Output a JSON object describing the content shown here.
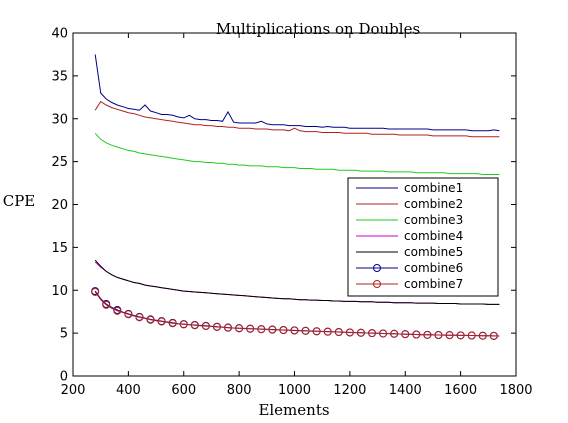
{
  "chart_data": {
    "type": "line",
    "title": "Multiplications on Doubles",
    "xlabel": "Elements",
    "ylabel": "CPE",
    "xlim": [
      200,
      1800
    ],
    "ylim": [
      0,
      40
    ],
    "xticks": [
      200,
      400,
      600,
      800,
      1000,
      1200,
      1400,
      1600,
      1800
    ],
    "yticks": [
      0,
      5,
      10,
      15,
      20,
      25,
      30,
      35,
      40
    ],
    "grid": false,
    "legend_position": "right",
    "x": [
      280,
      300,
      320,
      340,
      360,
      380,
      400,
      420,
      440,
      460,
      480,
      500,
      520,
      540,
      560,
      580,
      600,
      620,
      640,
      660,
      680,
      700,
      720,
      740,
      760,
      780,
      800,
      820,
      840,
      860,
      880,
      900,
      920,
      940,
      960,
      980,
      1000,
      1020,
      1040,
      1060,
      1080,
      1100,
      1120,
      1140,
      1160,
      1180,
      1200,
      1220,
      1240,
      1260,
      1280,
      1300,
      1320,
      1340,
      1360,
      1380,
      1400,
      1420,
      1440,
      1460,
      1480,
      1500,
      1520,
      1540,
      1560,
      1580,
      1600,
      1620,
      1640,
      1660,
      1680,
      1700,
      1720,
      1740
    ],
    "series": [
      {
        "name": "combine1",
        "color": "#00008b",
        "marker": "none",
        "values": [
          37.5,
          33.0,
          32.3,
          31.9,
          31.6,
          31.4,
          31.2,
          31.1,
          31.0,
          31.6,
          30.9,
          30.7,
          30.5,
          30.5,
          30.4,
          30.2,
          30.1,
          30.4,
          30.0,
          29.9,
          29.9,
          29.8,
          29.8,
          29.7,
          30.8,
          29.6,
          29.5,
          29.5,
          29.5,
          29.5,
          29.7,
          29.4,
          29.3,
          29.3,
          29.3,
          29.2,
          29.2,
          29.2,
          29.1,
          29.1,
          29.1,
          29.0,
          29.1,
          29.0,
          29.0,
          29.0,
          28.9,
          28.9,
          28.9,
          28.9,
          28.9,
          28.9,
          28.9,
          28.8,
          28.8,
          28.8,
          28.8,
          28.8,
          28.8,
          28.8,
          28.8,
          28.7,
          28.7,
          28.7,
          28.7,
          28.7,
          28.7,
          28.7,
          28.6,
          28.6,
          28.6,
          28.6,
          28.7,
          28.6
        ]
      },
      {
        "name": "combine2",
        "color": "#b22222",
        "marker": "none",
        "values": [
          31.0,
          32.0,
          31.6,
          31.3,
          31.1,
          30.9,
          30.7,
          30.6,
          30.4,
          30.2,
          30.1,
          30.0,
          29.9,
          29.8,
          29.7,
          29.6,
          29.5,
          29.4,
          29.3,
          29.3,
          29.2,
          29.2,
          29.1,
          29.1,
          29.0,
          29.0,
          28.9,
          28.9,
          28.9,
          28.8,
          28.8,
          28.8,
          28.7,
          28.7,
          28.7,
          28.6,
          28.9,
          28.6,
          28.5,
          28.5,
          28.5,
          28.4,
          28.4,
          28.4,
          28.4,
          28.3,
          28.3,
          28.3,
          28.3,
          28.3,
          28.2,
          28.2,
          28.2,
          28.2,
          28.2,
          28.1,
          28.1,
          28.1,
          28.1,
          28.1,
          28.1,
          28.0,
          28.0,
          28.0,
          28.0,
          28.0,
          28.0,
          28.0,
          27.9,
          27.9,
          27.9,
          27.9,
          27.9,
          27.9
        ]
      },
      {
        "name": "combine3",
        "color": "#22c922",
        "marker": "none",
        "values": [
          28.3,
          27.6,
          27.2,
          26.9,
          26.7,
          26.5,
          26.3,
          26.2,
          26.0,
          25.9,
          25.8,
          25.7,
          25.6,
          25.5,
          25.4,
          25.3,
          25.2,
          25.1,
          25.0,
          25.0,
          24.9,
          24.9,
          24.8,
          24.8,
          24.7,
          24.7,
          24.6,
          24.6,
          24.5,
          24.5,
          24.5,
          24.4,
          24.4,
          24.4,
          24.3,
          24.3,
          24.3,
          24.2,
          24.2,
          24.2,
          24.1,
          24.1,
          24.1,
          24.1,
          24.0,
          24.0,
          24.0,
          24.0,
          23.9,
          23.9,
          23.9,
          23.9,
          23.9,
          23.8,
          23.8,
          23.8,
          23.8,
          23.8,
          23.7,
          23.7,
          23.7,
          23.7,
          23.7,
          23.7,
          23.6,
          23.6,
          23.6,
          23.6,
          23.6,
          23.6,
          23.5,
          23.5,
          23.5,
          23.5
        ]
      },
      {
        "name": "combine4",
        "color": "#cc00cc",
        "marker": "none",
        "values": [
          13.3,
          12.7,
          12.2,
          11.8,
          11.5,
          11.3,
          11.1,
          10.9,
          10.8,
          10.6,
          10.5,
          10.4,
          10.3,
          10.2,
          10.1,
          10.0,
          9.9,
          9.85,
          9.8,
          9.75,
          9.7,
          9.65,
          9.6,
          9.55,
          9.5,
          9.45,
          9.4,
          9.35,
          9.3,
          9.25,
          9.2,
          9.15,
          9.1,
          9.05,
          9.0,
          9.0,
          8.95,
          8.9,
          8.9,
          8.85,
          8.85,
          8.8,
          8.8,
          8.75,
          8.75,
          8.7,
          8.7,
          8.7,
          8.65,
          8.65,
          8.65,
          8.6,
          8.6,
          8.6,
          8.55,
          8.55,
          8.55,
          8.55,
          8.5,
          8.5,
          8.5,
          8.5,
          8.45,
          8.45,
          8.45,
          8.45,
          8.4,
          8.4,
          8.4,
          8.4,
          8.4,
          8.35,
          8.35,
          8.35
        ]
      },
      {
        "name": "combine5",
        "color": "#000000",
        "marker": "none",
        "values": [
          13.5,
          12.8,
          12.2,
          11.8,
          11.5,
          11.3,
          11.1,
          10.9,
          10.8,
          10.6,
          10.5,
          10.4,
          10.3,
          10.2,
          10.1,
          10.0,
          9.9,
          9.85,
          9.8,
          9.75,
          9.7,
          9.65,
          9.6,
          9.55,
          9.5,
          9.45,
          9.4,
          9.35,
          9.3,
          9.25,
          9.2,
          9.15,
          9.1,
          9.05,
          9.0,
          9.0,
          8.95,
          8.9,
          8.9,
          8.85,
          8.85,
          8.8,
          8.8,
          8.75,
          8.75,
          8.7,
          8.7,
          8.7,
          8.65,
          8.65,
          8.65,
          8.6,
          8.6,
          8.6,
          8.55,
          8.55,
          8.55,
          8.55,
          8.5,
          8.5,
          8.5,
          8.5,
          8.45,
          8.45,
          8.45,
          8.45,
          8.4,
          8.4,
          8.4,
          8.4,
          8.4,
          8.35,
          8.35,
          8.35
        ]
      },
      {
        "name": "combine6",
        "color": "#00008b",
        "marker": "circle",
        "values": [
          9.9,
          9.0,
          8.4,
          8.0,
          7.7,
          7.45,
          7.25,
          7.05,
          6.9,
          6.75,
          6.6,
          6.5,
          6.4,
          6.3,
          6.2,
          6.1,
          6.05,
          6.0,
          5.95,
          5.9,
          5.85,
          5.8,
          5.75,
          5.7,
          5.65,
          5.6,
          5.58,
          5.55,
          5.52,
          5.5,
          5.47,
          5.45,
          5.42,
          5.4,
          5.37,
          5.35,
          5.32,
          5.3,
          5.28,
          5.25,
          5.22,
          5.2,
          5.18,
          5.15,
          5.13,
          5.1,
          5.08,
          5.06,
          5.04,
          5.02,
          5.0,
          4.98,
          4.96,
          4.94,
          4.92,
          4.9,
          4.88,
          4.86,
          4.84,
          4.82,
          4.8,
          4.79,
          4.78,
          4.77,
          4.76,
          4.75,
          4.74,
          4.73,
          4.72,
          4.71,
          4.7,
          4.69,
          4.68,
          4.67
        ]
      },
      {
        "name": "combine7",
        "color": "#b22222",
        "marker": "circle",
        "values": [
          9.8,
          8.9,
          8.3,
          7.9,
          7.6,
          7.4,
          7.2,
          7.0,
          6.85,
          6.7,
          6.55,
          6.45,
          6.35,
          6.25,
          6.15,
          6.08,
          6.02,
          5.97,
          5.92,
          5.87,
          5.82,
          5.77,
          5.72,
          5.68,
          5.63,
          5.59,
          5.56,
          5.53,
          5.5,
          5.48,
          5.45,
          5.43,
          5.4,
          5.38,
          5.35,
          5.33,
          5.3,
          5.28,
          5.26,
          5.23,
          5.21,
          5.19,
          5.16,
          5.14,
          5.12,
          5.1,
          5.08,
          5.06,
          5.04,
          5.02,
          5.0,
          4.98,
          4.96,
          4.94,
          4.92,
          4.9,
          4.88,
          4.86,
          4.84,
          4.82,
          4.8,
          4.79,
          4.78,
          4.77,
          4.76,
          4.75,
          4.74,
          4.73,
          4.72,
          4.71,
          4.7,
          4.69,
          4.68,
          4.67
        ]
      }
    ]
  }
}
